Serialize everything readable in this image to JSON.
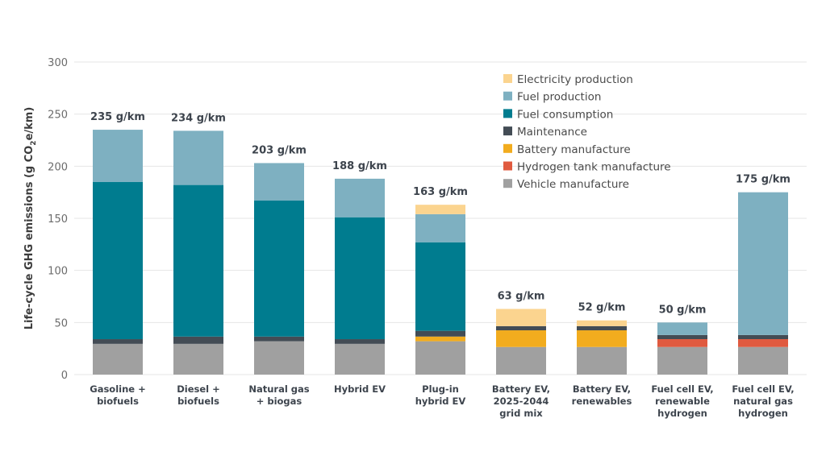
{
  "chart_data": {
    "type": "bar",
    "stacked": true,
    "title": "",
    "xlabel": "",
    "ylabel": "Life-cycle GHG emissions (g CO2e/km)",
    "ylabel_parts": {
      "before": "Life-cycle GHG emissions (g CO",
      "sub": "2",
      "after": "e/km)"
    },
    "ylim": [
      0,
      300
    ],
    "yticks": [
      0,
      50,
      100,
      150,
      200,
      250,
      300
    ],
    "grid": true,
    "legend_position": "top-right",
    "categories": [
      [
        "Gasoline +",
        "biofuels"
      ],
      [
        "Diesel +",
        "biofuels"
      ],
      [
        "Natural gas",
        "+ biogas"
      ],
      [
        "Hybrid EV"
      ],
      [
        "Plug-in",
        "hybrid EV"
      ],
      [
        "Battery EV,",
        "2025-2044",
        "grid mix"
      ],
      [
        "Battery EV,",
        "renewables"
      ],
      [
        "Fuel cell EV,",
        "renewable",
        "hydrogen"
      ],
      [
        "Fuel cell EV,",
        "natural gas",
        "hydrogen"
      ]
    ],
    "totals": [
      "235 g/km",
      "234 g/km",
      "203 g/km",
      "188 g/km",
      "163 g/km",
      "63 g/km",
      "52 g/km",
      "50 g/km",
      "175 g/km"
    ],
    "series": [
      {
        "name": "Vehicle manufacture",
        "color": "#a0a0a0",
        "values": [
          29.5,
          29.5,
          32,
          29.5,
          32,
          26.5,
          26.5,
          26.5,
          26.5
        ]
      },
      {
        "name": "Hydrogen tank manufacture",
        "color": "#e05a3f",
        "values": [
          0,
          0,
          0,
          0,
          0,
          0,
          0,
          7.5,
          7.5
        ]
      },
      {
        "name": "Battery manufacture",
        "color": "#f2ac1e",
        "values": [
          0,
          0,
          0,
          0,
          4.5,
          16,
          16,
          0,
          0
        ]
      },
      {
        "name": "Maintenance",
        "color": "#434c55",
        "values": [
          4.5,
          7,
          4.5,
          4.5,
          5.5,
          4,
          4,
          4,
          4
        ]
      },
      {
        "name": "Fuel consumption",
        "color": "#007c8f",
        "values": [
          151,
          145.5,
          130.5,
          117,
          85,
          0,
          0,
          0,
          0
        ]
      },
      {
        "name": "Fuel production",
        "color": "#7eb0c1",
        "values": [
          50,
          52,
          36,
          37,
          27,
          0,
          0,
          12,
          137
        ]
      },
      {
        "name": "Electricity production",
        "color": "#fbd48f",
        "values": [
          0,
          0,
          0,
          0,
          9,
          16.5,
          5.5,
          0,
          0
        ]
      }
    ],
    "legend_order": [
      "Electricity production",
      "Fuel production",
      "Fuel consumption",
      "Maintenance",
      "Battery manufacture",
      "Hydrogen tank manufacture",
      "Vehicle manufacture"
    ]
  }
}
